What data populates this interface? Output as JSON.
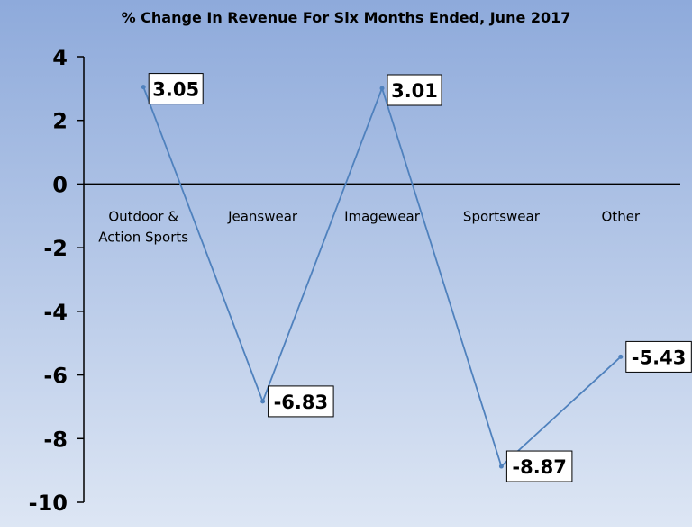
{
  "chart_data": {
    "type": "line",
    "title": "% Change In Revenue For Six Months Ended, June 2017",
    "xlabel": "",
    "ylabel": "",
    "categories": [
      [
        "Outdoor &",
        "Action Sports"
      ],
      [
        "Jeanswear"
      ],
      [
        "Imagewear"
      ],
      [
        "Sportswear"
      ],
      [
        "Other"
      ]
    ],
    "series": [
      {
        "values": [
          3.05,
          -6.83,
          3.01,
          -8.87,
          -5.43
        ]
      }
    ],
    "data_labels": [
      "3.05",
      "-6.83",
      "3.01",
      "-8.87",
      "-5.43"
    ],
    "ylim": [
      -10,
      4
    ],
    "yticks": [
      "-10",
      "-8",
      "-6",
      "-4",
      "-2",
      "0",
      "2",
      "4"
    ],
    "grid": false,
    "legend": "none",
    "colors": {
      "line": "#4f81bd",
      "bg_top": "#8eaadb",
      "bg_bottom": "#dde6f4",
      "axis": "#000000",
      "label_border": "#000000",
      "label_fill": "#ffffff"
    }
  }
}
